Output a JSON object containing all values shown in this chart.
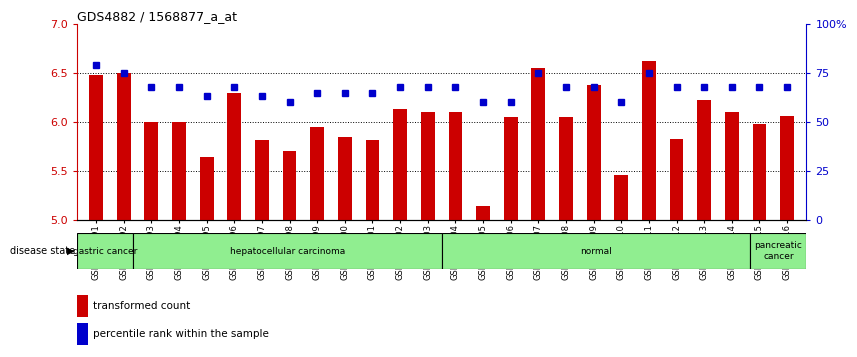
{
  "title": "GDS4882 / 1568877_a_at",
  "samples": [
    "GSM1200291",
    "GSM1200292",
    "GSM1200293",
    "GSM1200294",
    "GSM1200295",
    "GSM1200296",
    "GSM1200297",
    "GSM1200298",
    "GSM1200299",
    "GSM1200300",
    "GSM1200301",
    "GSM1200302",
    "GSM1200303",
    "GSM1200304",
    "GSM1200305",
    "GSM1200306",
    "GSM1200307",
    "GSM1200308",
    "GSM1200309",
    "GSM1200310",
    "GSM1200311",
    "GSM1200312",
    "GSM1200313",
    "GSM1200314",
    "GSM1200315",
    "GSM1200316"
  ],
  "transformed_count": [
    6.48,
    6.5,
    6.0,
    6.0,
    5.64,
    6.3,
    5.82,
    5.7,
    5.95,
    5.85,
    5.82,
    6.13,
    6.1,
    6.1,
    5.14,
    6.05,
    6.55,
    6.05,
    6.38,
    5.46,
    6.62,
    5.83,
    6.22,
    6.1,
    5.98,
    6.06
  ],
  "percentile_rank": [
    79,
    75,
    68,
    68,
    63,
    68,
    63,
    60,
    65,
    65,
    65,
    68,
    68,
    68,
    60,
    60,
    75,
    68,
    68,
    60,
    75,
    68,
    68,
    68,
    68,
    68
  ],
  "groups": [
    {
      "label": "gastric cancer",
      "start": 0,
      "end": 2
    },
    {
      "label": "hepatocellular carcinoma",
      "start": 2,
      "end": 13
    },
    {
      "label": "normal",
      "start": 13,
      "end": 24
    },
    {
      "label": "pancreatic\ncancer",
      "start": 24,
      "end": 26
    }
  ],
  "ylim": [
    5.0,
    7.0
  ],
  "yticks_left": [
    5.0,
    5.5,
    6.0,
    6.5,
    7.0
  ],
  "yticks_right": [
    0,
    25,
    50,
    75,
    100
  ],
  "bar_color": "#CC0000",
  "dot_color": "#0000CC",
  "group_color": "#90EE90",
  "background_color": "#ffffff",
  "bar_width": 0.5
}
